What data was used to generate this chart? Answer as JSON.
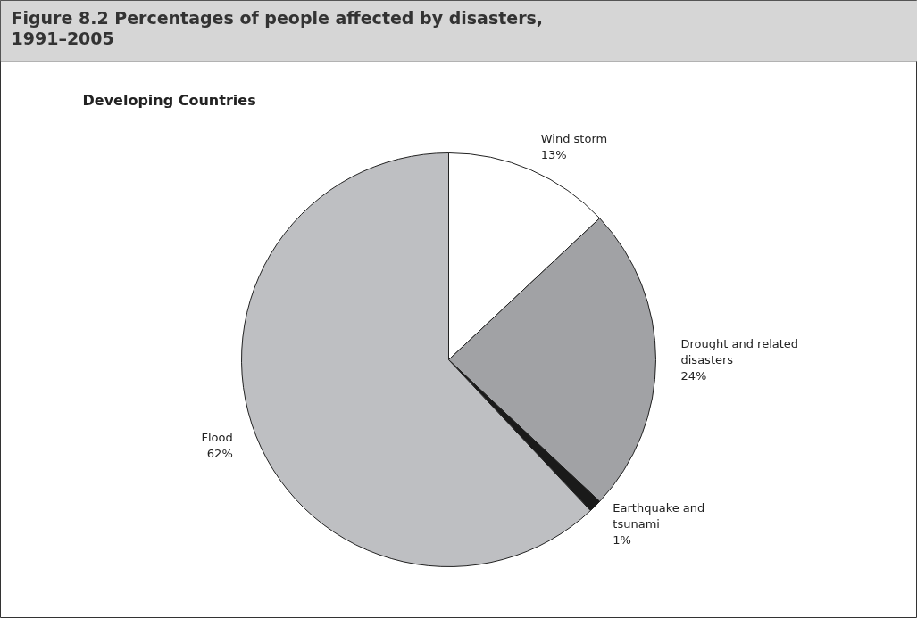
{
  "chart_data": {
    "type": "pie",
    "title": "Figure 8.2 Percentages of people affected by disasters, 1991–2005",
    "subtitle": "Developing Countries",
    "categories": [
      "Wind storm",
      "Drought and related disasters",
      "Earthquake and tsunami",
      "Flood"
    ],
    "values": [
      13,
      24,
      1,
      62
    ],
    "colors": [
      "#ffffff",
      "#a1a2a5",
      "#1a1a1a",
      "#bebfc2"
    ],
    "value_labels": [
      "13%",
      "24%",
      "1%",
      "62%"
    ]
  }
}
